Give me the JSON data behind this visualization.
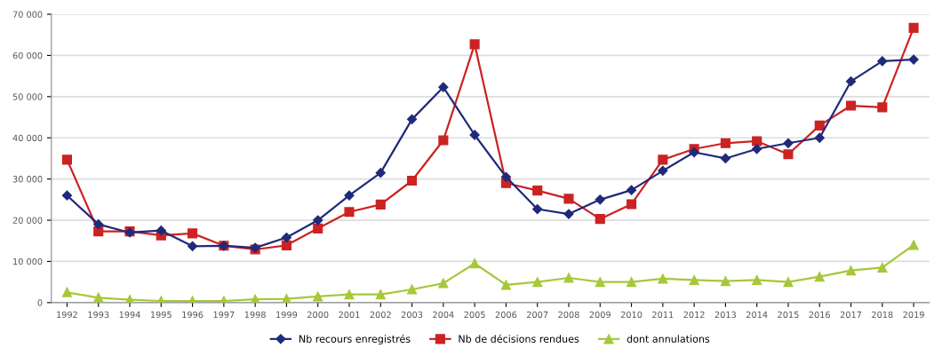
{
  "chart_data": {
    "type": "line",
    "categories": [
      "1992",
      "1993",
      "1994",
      "1995",
      "1996",
      "1997",
      "1998",
      "1999",
      "2000",
      "2001",
      "2002",
      "2003",
      "2004",
      "2005",
      "2006",
      "2007",
      "2008",
      "2009",
      "2010",
      "2011",
      "2012",
      "2013",
      "2014",
      "2015",
      "2016",
      "2017",
      "2018",
      "2019"
    ],
    "series": [
      {
        "name": "Nb recours enregistrés",
        "color": "#1f2a7a",
        "marker": "diamond",
        "values": [
          26000,
          19000,
          17000,
          17500,
          13700,
          13800,
          13300,
          15800,
          20000,
          26000,
          31500,
          44500,
          52300,
          40700,
          30500,
          22700,
          21500,
          25000,
          27300,
          32000,
          36500,
          35000,
          37300,
          38700,
          40000,
          53700,
          58600,
          59000
        ]
      },
      {
        "name": "Nb de décisions rendues",
        "color": "#cc2222",
        "marker": "square",
        "values": [
          34700,
          17300,
          17300,
          16300,
          16800,
          13800,
          12900,
          13900,
          18000,
          22000,
          23800,
          29600,
          39400,
          62700,
          29000,
          27200,
          25200,
          20300,
          23900,
          34700,
          37300,
          38700,
          39200,
          36000,
          43000,
          47800,
          47400,
          66700
        ]
      },
      {
        "name": "dont annulations",
        "color": "#a6c83a",
        "marker": "triangle",
        "values": [
          2500,
          1200,
          700,
          400,
          400,
          400,
          800,
          900,
          1500,
          2000,
          2000,
          3200,
          4700,
          9500,
          4300,
          5000,
          6000,
          5000,
          5000,
          5800,
          5500,
          5200,
          5500,
          5000,
          6300,
          7800,
          8500,
          14000
        ]
      }
    ],
    "ylim": [
      0,
      70000
    ],
    "yticks": [
      {
        "value": 0,
        "label": "0"
      },
      {
        "value": 10000,
        "label": "10 000"
      },
      {
        "value": 20000,
        "label": "20 000"
      },
      {
        "value": 30000,
        "label": "30 000"
      },
      {
        "value": 40000,
        "label": "40 000"
      },
      {
        "value": 50000,
        "label": "50 000"
      },
      {
        "value": 60000,
        "label": "60 000"
      },
      {
        "value": 70000,
        "label": "70 000"
      }
    ],
    "grid": "y",
    "legend": "bottom",
    "line_style": "solid"
  }
}
